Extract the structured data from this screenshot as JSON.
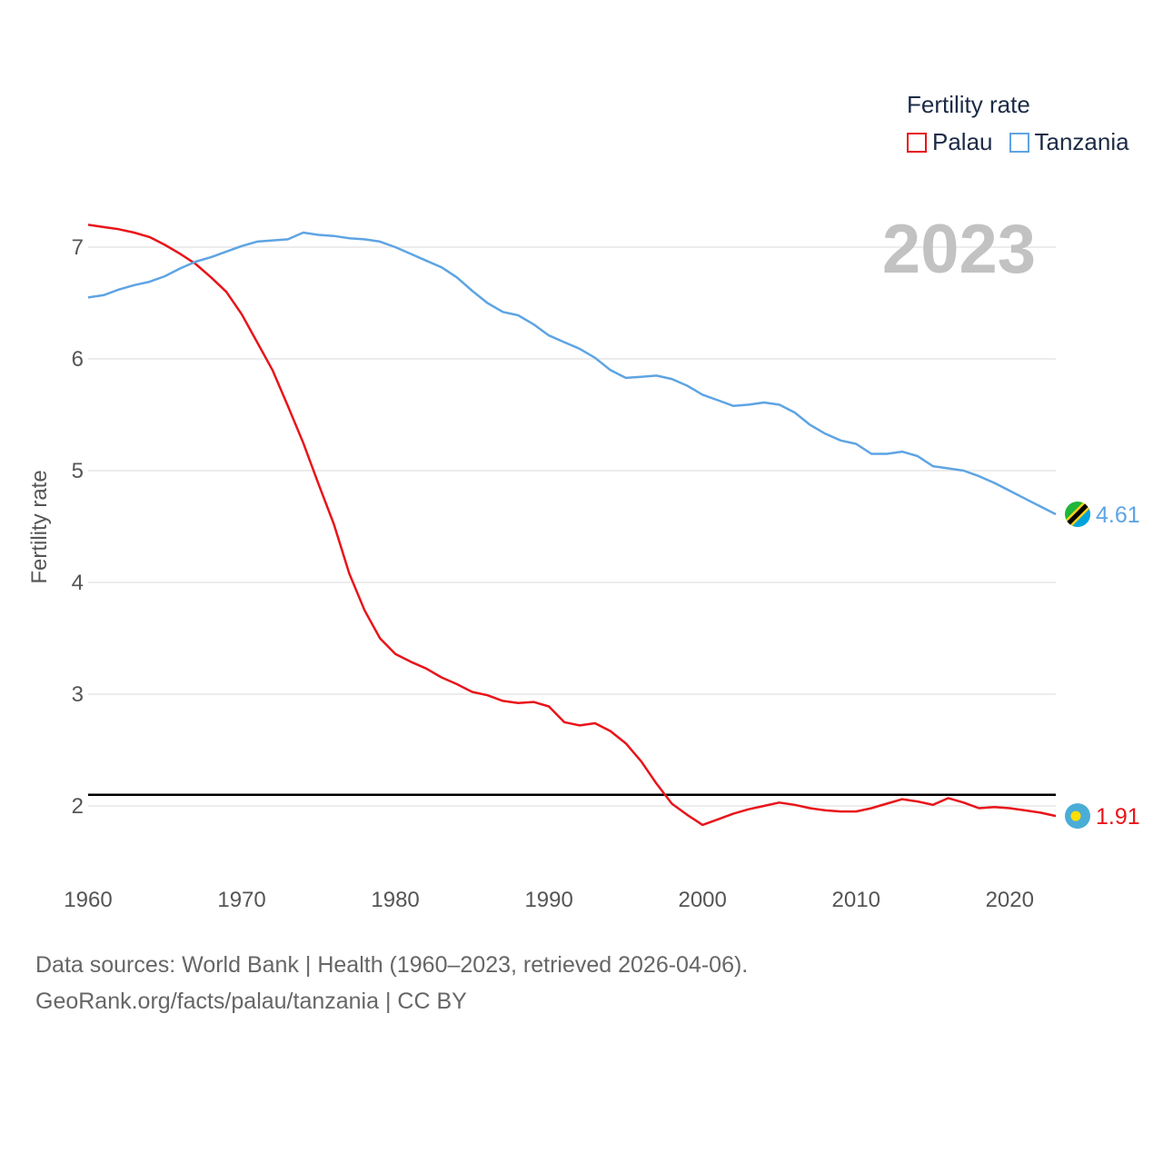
{
  "colors": {
    "palau": "#e8141a",
    "tanzania": "#5ea4e3",
    "reference": "#000000",
    "grid": "#e6e6e6"
  },
  "legend": {
    "title": "Fertility rate",
    "items": [
      "Palau",
      "Tanzania"
    ]
  },
  "year_label": "2023",
  "source": {
    "line1": "Data sources: World Bank | Health (1960–2023, retrieved 2026-04-06).",
    "line2": "GeoRank.org/facts/palau/tanzania | CC BY"
  },
  "end_labels": {
    "tanzania": "4.61",
    "palau": "1.91"
  },
  "flags": {
    "tanzania": "tanzania-flag-icon",
    "palau": "palau-flag-icon"
  },
  "chart_data": {
    "type": "line",
    "title": "Fertility rate",
    "xlabel": "",
    "ylabel": "Fertility rate",
    "xlim": [
      1960,
      2023
    ],
    "ylim": [
      1.5,
      7.4
    ],
    "x_ticks": [
      1960,
      1970,
      1980,
      1990,
      2000,
      2010,
      2020
    ],
    "y_ticks": [
      2,
      3,
      4,
      5,
      6,
      7
    ],
    "reference_line": 2.1,
    "x": [
      1960,
      1961,
      1962,
      1963,
      1964,
      1965,
      1966,
      1967,
      1968,
      1969,
      1970,
      1971,
      1972,
      1973,
      1974,
      1975,
      1976,
      1977,
      1978,
      1979,
      1980,
      1981,
      1982,
      1983,
      1984,
      1985,
      1986,
      1987,
      1988,
      1989,
      1990,
      1991,
      1992,
      1993,
      1994,
      1995,
      1996,
      1997,
      1998,
      1999,
      2000,
      2001,
      2002,
      2003,
      2004,
      2005,
      2006,
      2007,
      2008,
      2009,
      2010,
      2011,
      2012,
      2013,
      2014,
      2015,
      2016,
      2017,
      2018,
      2019,
      2020,
      2021,
      2022,
      2023
    ],
    "series": [
      {
        "name": "Palau",
        "values": [
          7.2,
          7.18,
          7.16,
          7.13,
          7.09,
          7.02,
          6.94,
          6.85,
          6.73,
          6.6,
          6.4,
          6.15,
          5.9,
          5.58,
          5.25,
          4.88,
          4.52,
          4.08,
          3.75,
          3.5,
          3.36,
          3.29,
          3.23,
          3.15,
          3.09,
          3.02,
          2.99,
          2.94,
          2.92,
          2.93,
          2.89,
          2.75,
          2.72,
          2.74,
          2.67,
          2.56,
          2.4,
          2.2,
          2.02,
          1.92,
          1.83,
          1.88,
          1.93,
          1.97,
          2.0,
          2.03,
          2.01,
          1.98,
          1.96,
          1.95,
          1.95,
          1.98,
          2.02,
          2.06,
          2.04,
          2.01,
          2.07,
          2.03,
          1.98,
          1.99,
          1.98,
          1.96,
          1.94,
          1.91
        ]
      },
      {
        "name": "Tanzania",
        "values": [
          6.55,
          6.57,
          6.62,
          6.66,
          6.69,
          6.74,
          6.81,
          6.87,
          6.91,
          6.96,
          7.01,
          7.05,
          7.06,
          7.07,
          7.13,
          7.11,
          7.1,
          7.08,
          7.07,
          7.05,
          7.0,
          6.94,
          6.88,
          6.82,
          6.73,
          6.61,
          6.5,
          6.42,
          6.39,
          6.31,
          6.21,
          6.15,
          6.09,
          6.01,
          5.9,
          5.83,
          5.84,
          5.85,
          5.82,
          5.76,
          5.68,
          5.63,
          5.58,
          5.59,
          5.61,
          5.59,
          5.52,
          5.41,
          5.33,
          5.27,
          5.24,
          5.15,
          5.15,
          5.17,
          5.13,
          5.04,
          5.02,
          5.0,
          4.95,
          4.89,
          4.82,
          4.75,
          4.68,
          4.61
        ]
      }
    ]
  }
}
